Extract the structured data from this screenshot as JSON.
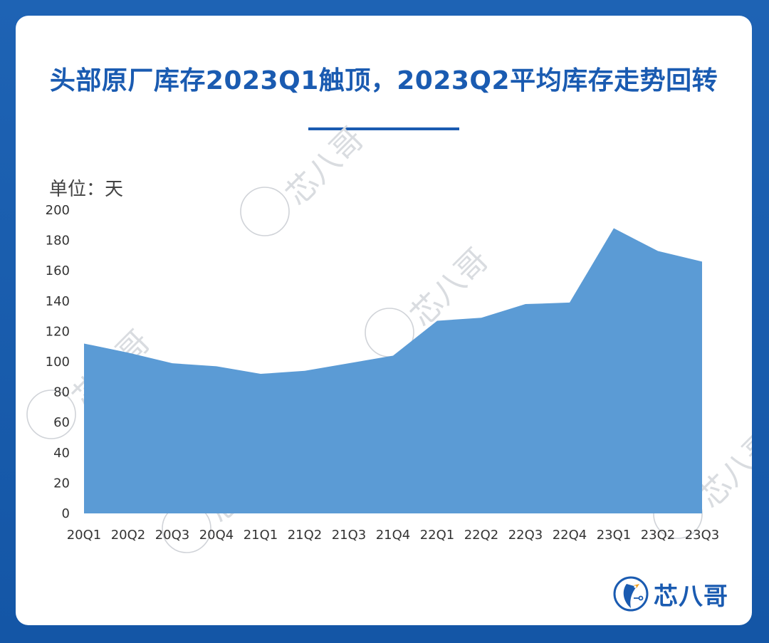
{
  "title": "头部原厂库存2023Q1触顶，2023Q2平均库存走势回转",
  "unit_label": "单位：天",
  "watermark": "芯八哥",
  "logo": {
    "text": "芯八哥",
    "icon": "bird-logo-icon"
  },
  "colors": {
    "accent": "#1a5bb1",
    "area": "#5b9bd5",
    "background": "#1456a6"
  },
  "chart_data": {
    "type": "area",
    "title": "",
    "xlabel": "",
    "ylabel": "单位：天",
    "categories": [
      "20Q1",
      "20Q2",
      "20Q3",
      "20Q4",
      "21Q1",
      "21Q2",
      "21Q3",
      "21Q4",
      "22Q1",
      "22Q2",
      "22Q3",
      "22Q4",
      "23Q1",
      "23Q2",
      "23Q3"
    ],
    "series": [
      {
        "values": [
          112,
          106,
          99,
          97,
          92,
          94,
          99,
          104,
          127,
          129,
          138,
          139,
          188,
          173,
          166
        ]
      }
    ],
    "ylim": [
      0,
      200
    ],
    "yticks": [
      0,
      20,
      40,
      60,
      80,
      100,
      120,
      140,
      160,
      180,
      200
    ],
    "grid": false,
    "legend": "none"
  }
}
